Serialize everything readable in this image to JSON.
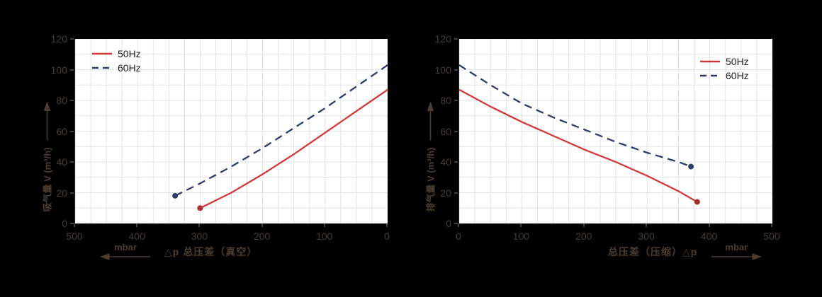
{
  "page": {
    "background": "#000000",
    "plot_background": "#ffffff",
    "grid_color": "#e2e3e6"
  },
  "chart_data": [
    {
      "type": "line",
      "title": "",
      "ylabel": "吸气量 V (m³/h)",
      "xlabel": "△p 总压差（真空）",
      "x_unit": "mbar",
      "x_arrow_direction": "left",
      "xlim": [
        500,
        0
      ],
      "ylim": [
        0,
        120
      ],
      "x_ticks": [
        500,
        400,
        300,
        200,
        100,
        0
      ],
      "y_ticks": [
        0,
        20,
        40,
        60,
        80,
        100,
        120
      ],
      "x_grid_step": 25,
      "y_grid_step": 10,
      "grid": true,
      "legend_position": "top-left",
      "series": [
        {
          "name": "50Hz",
          "line_style": "solid",
          "color": "#d23a3a",
          "dot_color": "#a93030",
          "endpoint_dot": [
            300,
            10
          ],
          "points": [
            [
              300,
              10
            ],
            [
              250,
              20
            ],
            [
              200,
              32
            ],
            [
              150,
              45
            ],
            [
              100,
              59
            ],
            [
              50,
              73
            ],
            [
              0,
              87
            ]
          ]
        },
        {
          "name": "60Hz",
          "line_style": "dashed",
          "color": "#2e3c6a",
          "dot_color": "#2f3e6b",
          "endpoint_dot": [
            340,
            18
          ],
          "points": [
            [
              340,
              18
            ],
            [
              300,
              26
            ],
            [
              250,
              37
            ],
            [
              200,
              49
            ],
            [
              150,
              62
            ],
            [
              100,
              75
            ],
            [
              50,
              89
            ],
            [
              0,
              103
            ]
          ]
        }
      ]
    },
    {
      "type": "line",
      "title": "",
      "ylabel": "排气量 V (m³/h)",
      "xlabel": "总压差（压缩）△p",
      "x_unit": "mbar",
      "x_arrow_direction": "right",
      "xlim": [
        0,
        500
      ],
      "ylim": [
        0,
        120
      ],
      "x_ticks": [
        0,
        100,
        200,
        300,
        400,
        500
      ],
      "y_ticks": [
        0,
        20,
        40,
        60,
        80,
        100,
        120
      ],
      "x_grid_step": 25,
      "y_grid_step": 10,
      "grid": true,
      "legend_position": "top-right",
      "series": [
        {
          "name": "50Hz",
          "line_style": "solid",
          "color": "#d23a3a",
          "dot_color": "#a93030",
          "endpoint_dot": [
            380,
            14
          ],
          "points": [
            [
              0,
              87
            ],
            [
              50,
              76
            ],
            [
              100,
              66
            ],
            [
              150,
              57
            ],
            [
              200,
              48
            ],
            [
              250,
              40
            ],
            [
              300,
              31
            ],
            [
              350,
              21
            ],
            [
              380,
              14
            ]
          ]
        },
        {
          "name": "60Hz",
          "line_style": "dashed",
          "color": "#2e3c6a",
          "dot_color": "#2f3e6b",
          "endpoint_dot": [
            370,
            37
          ],
          "points": [
            [
              0,
              103
            ],
            [
              50,
              90
            ],
            [
              100,
              78
            ],
            [
              150,
              69
            ],
            [
              200,
              61
            ],
            [
              250,
              53
            ],
            [
              300,
              46
            ],
            [
              350,
              40
            ],
            [
              370,
              37
            ]
          ]
        }
      ]
    }
  ]
}
